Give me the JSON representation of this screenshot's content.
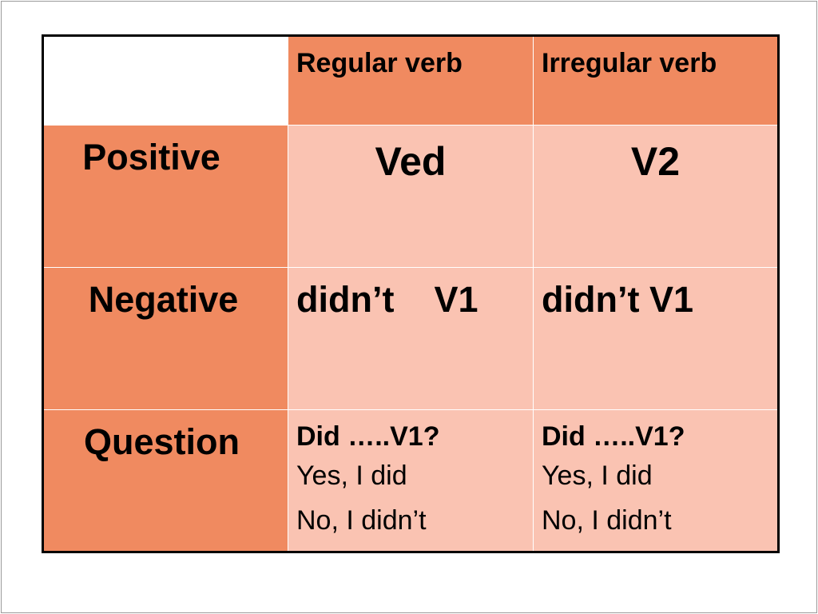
{
  "table": {
    "headers": [
      "",
      "Regular verb",
      "Irregular verb"
    ],
    "rows": [
      {
        "label": "Positive",
        "regular": "Ved",
        "irregular": "V2"
      },
      {
        "label": "Negative",
        "regular": "didn’t    V1",
        "irregular": "didn’t V1"
      },
      {
        "label": "Question",
        "regular": [
          "Did …..V1?",
          "Yes, I did",
          "No, I didn’t"
        ],
        "irregular": [
          "Did …..V1?",
          "Yes, I did",
          "No, I didn’t"
        ]
      }
    ]
  },
  "colors": {
    "header_fill": "#f08a60",
    "cell_fill": "#fac3b2",
    "corner_fill": "#ffffff",
    "border": "#000000"
  }
}
